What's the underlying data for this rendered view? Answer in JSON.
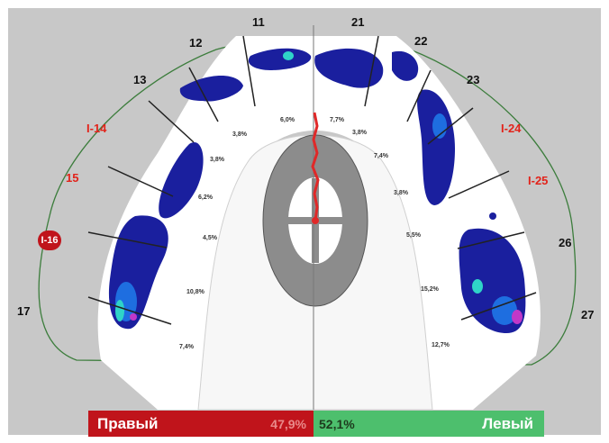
{
  "teeth": [
    {
      "label": "11",
      "color": "#111111"
    },
    {
      "label": "12",
      "color": "#111111"
    },
    {
      "label": "13",
      "color": "#111111"
    },
    {
      "label": "I-14",
      "color": "#e2231a"
    },
    {
      "label": "15",
      "color": "#e2231a"
    },
    {
      "label": "I-16",
      "color": "#ffffff",
      "badge": "#c0141b"
    },
    {
      "label": "17",
      "color": "#111111"
    },
    {
      "label": "21",
      "color": "#111111"
    },
    {
      "label": "22",
      "color": "#111111"
    },
    {
      "label": "23",
      "color": "#111111"
    },
    {
      "label": "I-24",
      "color": "#e2231a"
    },
    {
      "label": "I-25",
      "color": "#e2231a"
    },
    {
      "label": "26",
      "color": "#111111"
    },
    {
      "label": "27",
      "color": "#111111"
    }
  ],
  "segment_percents": {
    "right": [
      "6,0%",
      "3,8%",
      "3,8%",
      "6,2%",
      "4,5%",
      "10,8%",
      "7,4%"
    ],
    "left": [
      "7,7%",
      "3,8%",
      "7,4%",
      "3,8%",
      "5,5%",
      "15,2%",
      "12,7%"
    ]
  },
  "balance": {
    "right_label": "Правый",
    "right_percent": "47,9%",
    "left_percent": "52,1%",
    "left_label": "Левый",
    "right_color": "#c0141b",
    "left_color": "#4dbf6d"
  }
}
